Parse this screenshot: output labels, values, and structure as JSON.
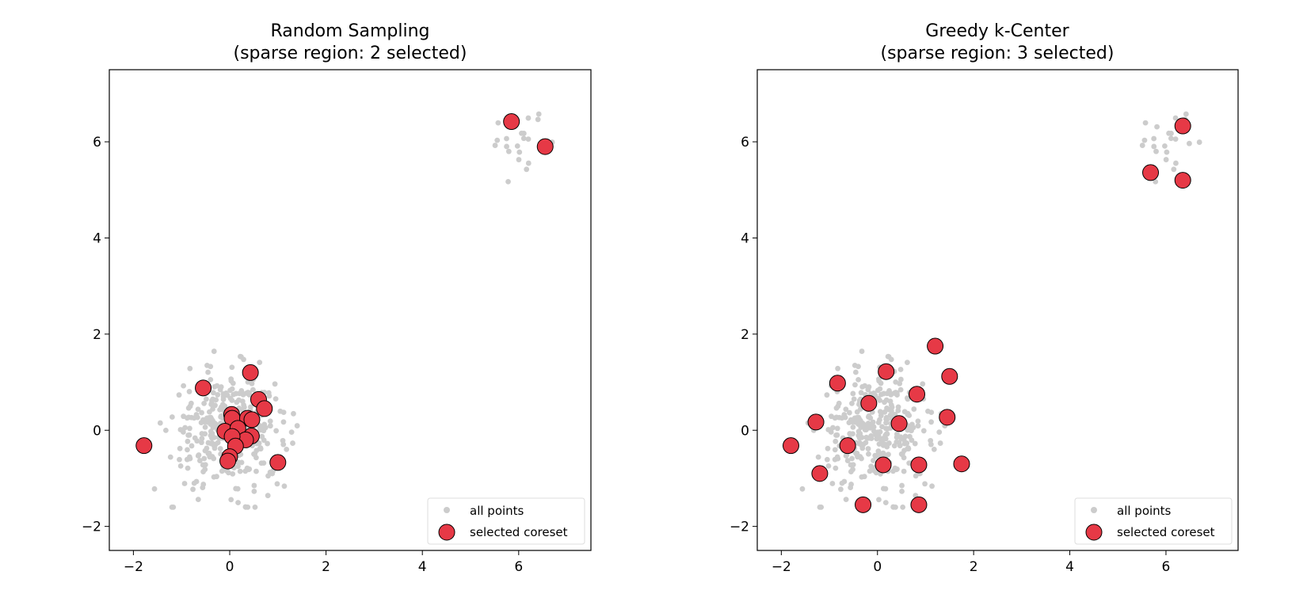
{
  "colors": {
    "background_points": "#cccccc",
    "selected_fill": "#e63946",
    "selected_edge": "#000000",
    "axes": "#000000",
    "legend_border": "#dddddd"
  },
  "chart_data": [
    {
      "type": "scatter",
      "title_line1": "Random Sampling",
      "title_line2": "(sparse region: 2 selected)",
      "xlim": [
        -2.5,
        7.5
      ],
      "ylim": [
        -2.5,
        7.5
      ],
      "xticks": [
        -2,
        0,
        2,
        4,
        6
      ],
      "yticks": [
        -2,
        0,
        2,
        4,
        6
      ],
      "xtick_labels": [
        "−2",
        "0",
        "2",
        "4",
        "6"
      ],
      "ytick_labels": [
        "−2",
        "0",
        "2",
        "4",
        "6"
      ],
      "grid": false,
      "legend_position": "lower-right",
      "legend": {
        "all_points": "all points",
        "selected": "selected coreset"
      },
      "series": [
        {
          "name": "selected coreset",
          "points": [
            [
              5.85,
              6.42
            ],
            [
              6.55,
              5.9
            ],
            [
              -1.78,
              -0.32
            ],
            [
              -0.55,
              0.88
            ],
            [
              0.43,
              1.2
            ],
            [
              0.6,
              0.64
            ],
            [
              0.72,
              0.45
            ],
            [
              0.04,
              0.33
            ],
            [
              0.05,
              0.25
            ],
            [
              0.37,
              0.25
            ],
            [
              0.46,
              0.22
            ],
            [
              -0.1,
              -0.02
            ],
            [
              0.17,
              0.04
            ],
            [
              0.45,
              -0.12
            ],
            [
              0.33,
              -0.2
            ],
            [
              0.05,
              -0.13
            ],
            [
              0.12,
              -0.33
            ],
            [
              0.0,
              -0.55
            ],
            [
              -0.04,
              -0.64
            ],
            [
              1.0,
              -0.67
            ]
          ]
        }
      ]
    },
    {
      "type": "scatter",
      "title_line1": "Greedy k-Center",
      "title_line2": "(sparse region: 3 selected)",
      "xlim": [
        -2.5,
        7.5
      ],
      "ylim": [
        -2.5,
        7.5
      ],
      "xticks": [
        -2,
        0,
        2,
        4,
        6
      ],
      "yticks": [
        -2,
        0,
        2,
        4,
        6
      ],
      "xtick_labels": [
        "−2",
        "0",
        "2",
        "4",
        "6"
      ],
      "ytick_labels": [
        "−2",
        "0",
        "2",
        "4",
        "6"
      ],
      "grid": false,
      "legend_position": "lower-right",
      "legend": {
        "all_points": "all points",
        "selected": "selected coreset"
      },
      "series": [
        {
          "name": "selected coreset",
          "points": [
            [
              6.35,
              6.33
            ],
            [
              5.68,
              5.36
            ],
            [
              6.35,
              5.2
            ],
            [
              1.2,
              1.75
            ],
            [
              1.5,
              1.12
            ],
            [
              0.18,
              1.22
            ],
            [
              -0.83,
              0.98
            ],
            [
              0.82,
              0.75
            ],
            [
              -0.18,
              0.56
            ],
            [
              -1.28,
              0.17
            ],
            [
              0.45,
              0.14
            ],
            [
              1.45,
              0.27
            ],
            [
              -1.8,
              -0.32
            ],
            [
              -0.62,
              -0.32
            ],
            [
              0.12,
              -0.72
            ],
            [
              0.86,
              -0.72
            ],
            [
              1.75,
              -0.7
            ],
            [
              -1.2,
              -0.9
            ],
            [
              -0.3,
              -1.55
            ],
            [
              0.86,
              -1.55
            ]
          ]
        }
      ]
    }
  ]
}
